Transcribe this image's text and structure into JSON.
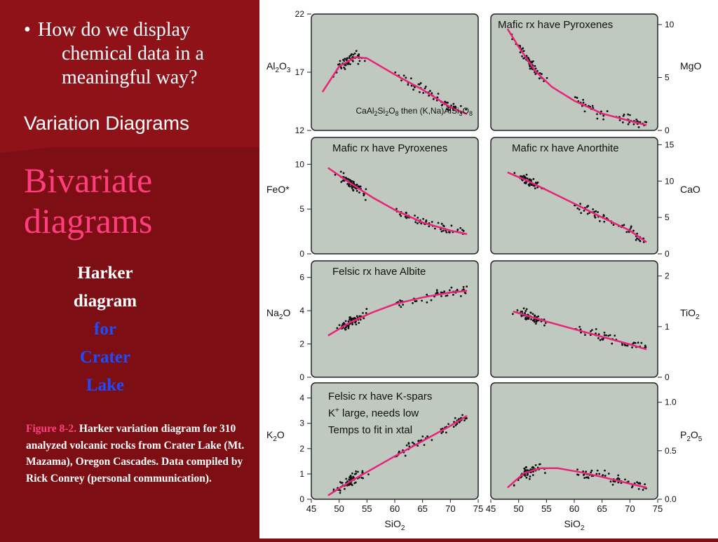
{
  "slide": {
    "question": [
      "How do we display",
      "chemical data in a",
      "meaningful way?"
    ],
    "question_bullet": "",
    "subtitle": "Variation Diagrams",
    "title_line1": "Bivariate",
    "title_line2": "diagrams",
    "harker_line1": "Harker",
    "harker_line2": "diagram",
    "harker_line3": "for",
    "harker_line4": "Crater",
    "harker_line5": "Lake",
    "caption_fig": "Figure 8-2.",
    "caption_text": "Harker variation diagram for 310 analyzed volcanic rocks from Crater Lake (Mt. Mazama), Oregon Cascades. Data compiled by Rick Conrey (personal communication).",
    "colors": {
      "background": "#7d0f14",
      "title_pink": "#ff3d7f",
      "blue": "#1a4dff",
      "panel_bg": "#bfc9bf",
      "trend_line": "#e8237a"
    }
  },
  "chart_data": [
    {
      "type": "scatter",
      "ylabel": "Al2O3",
      "ylabel_main": "Al",
      "sub1": "2",
      "mid": "O",
      "sub2": "3",
      "ylim": [
        12,
        22
      ],
      "yticks": [
        "22",
        "17",
        "12"
      ],
      "xlim": [
        45,
        75
      ],
      "trend": [
        [
          47,
          15.3
        ],
        [
          50,
          17.5
        ],
        [
          53,
          18.3
        ],
        [
          55,
          18.2
        ],
        [
          60,
          16.8
        ],
        [
          65,
          15.5
        ],
        [
          70,
          14.0
        ],
        [
          73,
          13.4
        ]
      ],
      "annotation": "CaAl2Si2O8 then (K,Na)AlSi3O8"
    },
    {
      "type": "scatter",
      "ylabel": "MgO",
      "ylim": [
        0,
        11
      ],
      "yticks": [
        "10",
        "5",
        "0"
      ],
      "xlim": [
        45,
        75
      ],
      "trend": [
        [
          48,
          9.6
        ],
        [
          50,
          7.9
        ],
        [
          53,
          5.6
        ],
        [
          56,
          4.1
        ],
        [
          60,
          2.8
        ],
        [
          65,
          1.6
        ],
        [
          70,
          0.9
        ],
        [
          73,
          0.5
        ]
      ],
      "annotation": "Mafic rx have Pyroxenes"
    },
    {
      "type": "scatter",
      "ylabel": "FeO*",
      "ylim": [
        0,
        13
      ],
      "yticks": [
        "10",
        "5",
        "0"
      ],
      "xlim": [
        45,
        75
      ],
      "trend": [
        [
          48,
          9.6
        ],
        [
          52,
          7.9
        ],
        [
          56,
          6.3
        ],
        [
          60,
          4.9
        ],
        [
          65,
          3.5
        ],
        [
          70,
          2.6
        ],
        [
          73,
          2.2
        ]
      ],
      "annotation": "Mafic rx have Pyroxenes"
    },
    {
      "type": "scatter",
      "ylabel": "CaO",
      "ylim": [
        0,
        16
      ],
      "yticks": [
        "15",
        "10",
        "5",
        "0"
      ],
      "xlim": [
        45,
        75
      ],
      "trend": [
        [
          48,
          11.2
        ],
        [
          52,
          9.9
        ],
        [
          56,
          8.4
        ],
        [
          60,
          6.9
        ],
        [
          65,
          5.0
        ],
        [
          70,
          3.2
        ],
        [
          73,
          1.6
        ]
      ],
      "annotation": "Mafic rx have Anorthite"
    },
    {
      "type": "scatter",
      "ylabel": "Na2O",
      "ylabel_main": "Na",
      "sub1": "2",
      "mid": "O",
      "sub2": "",
      "ylim": [
        0,
        7
      ],
      "yticks": [
        "6",
        "4",
        "2",
        "0"
      ],
      "xlim": [
        45,
        75
      ],
      "trend": [
        [
          48,
          2.5
        ],
        [
          52,
          3.3
        ],
        [
          56,
          3.9
        ],
        [
          60,
          4.4
        ],
        [
          65,
          4.8
        ],
        [
          70,
          5.1
        ],
        [
          73,
          5.2
        ]
      ],
      "annotation": "Felsic rx have  Albite"
    },
    {
      "type": "scatter",
      "ylabel": "TiO2",
      "ylabel_main": "TiO",
      "sub1": "2",
      "mid": "",
      "sub2": "",
      "ylim": [
        0,
        2.3
      ],
      "yticks": [
        "2",
        "1",
        "0"
      ],
      "xlim": [
        45,
        75
      ],
      "trend": [
        [
          49,
          1.3
        ],
        [
          55,
          1.1
        ],
        [
          60,
          0.95
        ],
        [
          65,
          0.8
        ],
        [
          70,
          0.65
        ],
        [
          73,
          0.55
        ]
      ],
      "annotation": ""
    },
    {
      "type": "scatter",
      "ylabel": "K2O",
      "ylabel_main": "K",
      "sub1": "2",
      "mid": "O",
      "sub2": "",
      "ylim": [
        0,
        4.6
      ],
      "yticks": [
        "4",
        "3",
        "2",
        "1",
        "0"
      ],
      "xlim": [
        45,
        75
      ],
      "trend": [
        [
          48,
          0.15
        ],
        [
          52,
          0.7
        ],
        [
          56,
          1.2
        ],
        [
          60,
          1.7
        ],
        [
          65,
          2.3
        ],
        [
          70,
          2.9
        ],
        [
          73,
          3.3
        ]
      ],
      "xlabel": "SiO2",
      "xticks": [
        "45",
        "50",
        "55",
        "60",
        "65",
        "70",
        "75"
      ],
      "annotation_lines": [
        "Felsic rx have K-spars",
        "K+ large, needs low",
        "Temps to fit in xtal"
      ]
    },
    {
      "type": "scatter",
      "ylabel": "P2O5",
      "ylabel_main": "P",
      "sub1": "2",
      "mid": "O",
      "sub2": "5",
      "ylim": [
        0,
        1.2
      ],
      "yticks": [
        "1.0",
        "0.5",
        "0.0"
      ],
      "xlim": [
        45,
        75
      ],
      "trend": [
        [
          48,
          0.12
        ],
        [
          51,
          0.27
        ],
        [
          54,
          0.32
        ],
        [
          57,
          0.32
        ],
        [
          61,
          0.28
        ],
        [
          65,
          0.23
        ],
        [
          70,
          0.16
        ],
        [
          73,
          0.12
        ]
      ],
      "xlabel": "SiO2",
      "xticks": [
        "45",
        "50",
        "55",
        "60",
        "65",
        "70",
        "75"
      ],
      "annotation": ""
    }
  ]
}
